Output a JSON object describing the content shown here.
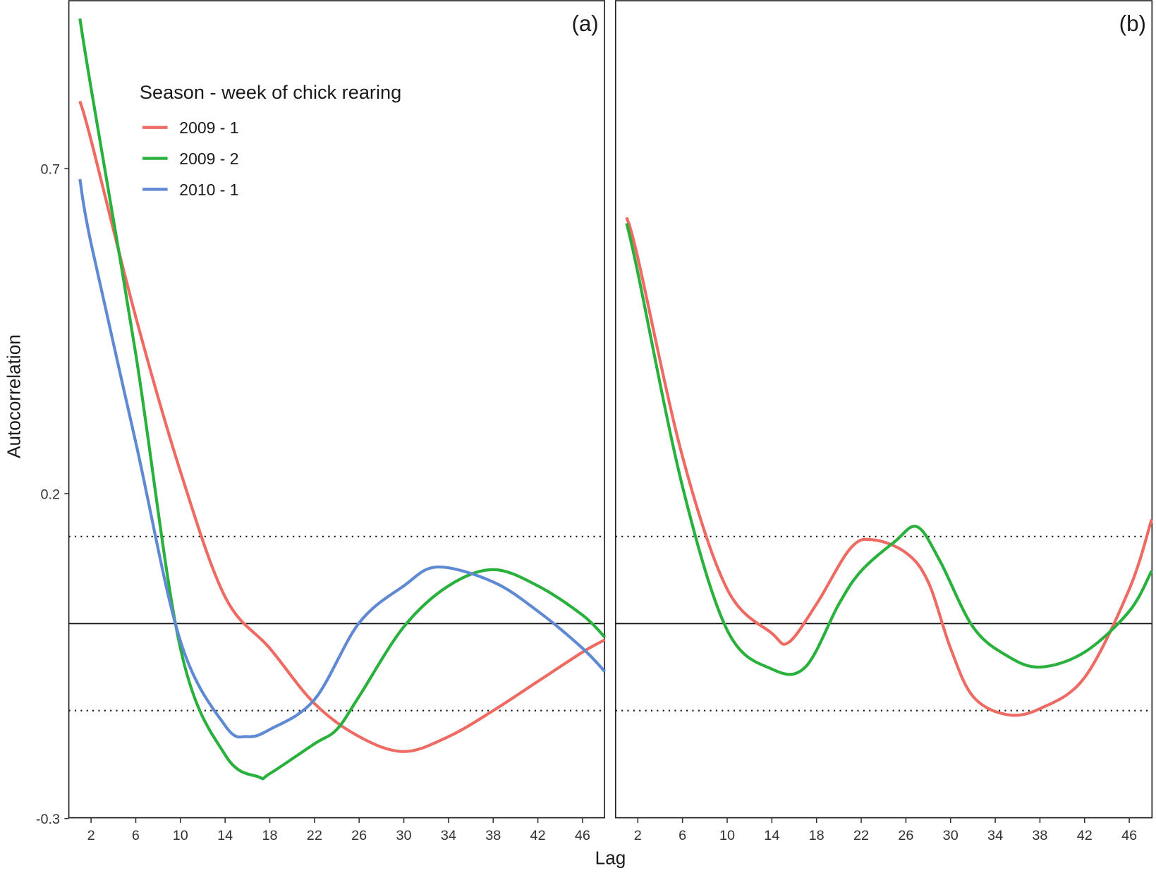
{
  "chart_data": {
    "type": "line",
    "xlabel": "Lag",
    "ylabel": "Autocorrelation",
    "ylim": [
      -0.3,
      0.95
    ],
    "xlim": [
      0,
      48
    ],
    "yticks": [
      "0.7",
      "0.2",
      "-0.3"
    ],
    "ytick_values": [
      0.7,
      0.2,
      -0.3
    ],
    "xticks": [
      "2",
      "6",
      "10",
      "14",
      "18",
      "22",
      "26",
      "30",
      "34",
      "38",
      "42",
      "46"
    ],
    "zero_line": 0,
    "confidence_bounds": [
      0.134,
      -0.134
    ],
    "legend": {
      "title": "Season - week of chick rearing",
      "placement": "top-left inside panel (a)"
    },
    "colors": {
      "2009 - 1": "#ee6b63",
      "2009 - 2": "#2ab03c",
      "2010 - 1": "#5f8ad3"
    },
    "panels": [
      {
        "label": "(a)",
        "series": [
          {
            "name": "2009 - 1",
            "x": [
              1,
              2,
              6,
              10,
              14,
              18,
              22,
              26,
              30,
              34,
              38,
              42,
              46,
              48
            ],
            "y": [
              0.804,
              0.744,
              0.472,
              0.234,
              0.041,
              -0.038,
              -0.123,
              -0.174,
              -0.197,
              -0.174,
              -0.134,
              -0.089,
              -0.044,
              -0.025
            ]
          },
          {
            "name": "2009 - 2",
            "x": [
              1,
              2,
              6,
              10,
              14,
              17,
              18,
              22,
              24,
              26,
              30,
              34,
              38,
              42,
              46,
              48
            ],
            "y": [
              0.931,
              0.824,
              0.415,
              -0.038,
              -0.202,
              -0.236,
              -0.231,
              -0.185,
              -0.163,
              -0.112,
              -0.005,
              0.058,
              0.083,
              0.058,
              0.013,
              -0.021
            ]
          },
          {
            "name": "2010 - 1",
            "x": [
              1,
              2,
              6,
              10,
              14,
              16,
              18,
              22,
              26,
              30,
              33,
              38,
              42,
              46,
              48
            ],
            "y": [
              0.684,
              0.585,
              0.279,
              -0.027,
              -0.157,
              -0.174,
              -0.163,
              -0.117,
              0.001,
              0.058,
              0.087,
              0.064,
              0.019,
              -0.038,
              -0.074
            ]
          }
        ]
      },
      {
        "label": "(b)",
        "series": [
          {
            "name": "2009 - 1",
            "x": [
              1,
              2,
              6,
              10,
              14,
              15.5,
              18,
              21,
              23,
              26,
              28,
              30,
              32,
              35,
              38,
              42,
              46,
              48
            ],
            "y": [
              0.625,
              0.563,
              0.257,
              0.053,
              -0.015,
              -0.029,
              0.03,
              0.115,
              0.129,
              0.109,
              0.064,
              -0.038,
              -0.112,
              -0.14,
              -0.131,
              -0.083,
              0.053,
              0.16
            ]
          },
          {
            "name": "2009 - 2",
            "x": [
              1,
              2,
              6,
              10,
              14,
              17,
              20,
              22,
              25,
              27,
              29,
              32,
              35,
              38,
              42,
              46,
              48
            ],
            "y": [
              0.616,
              0.54,
              0.211,
              -0.01,
              -0.07,
              -0.067,
              0.03,
              0.081,
              0.126,
              0.149,
              0.098,
              -0.005,
              -0.049,
              -0.067,
              -0.044,
              0.019,
              0.081
            ]
          }
        ]
      }
    ]
  }
}
